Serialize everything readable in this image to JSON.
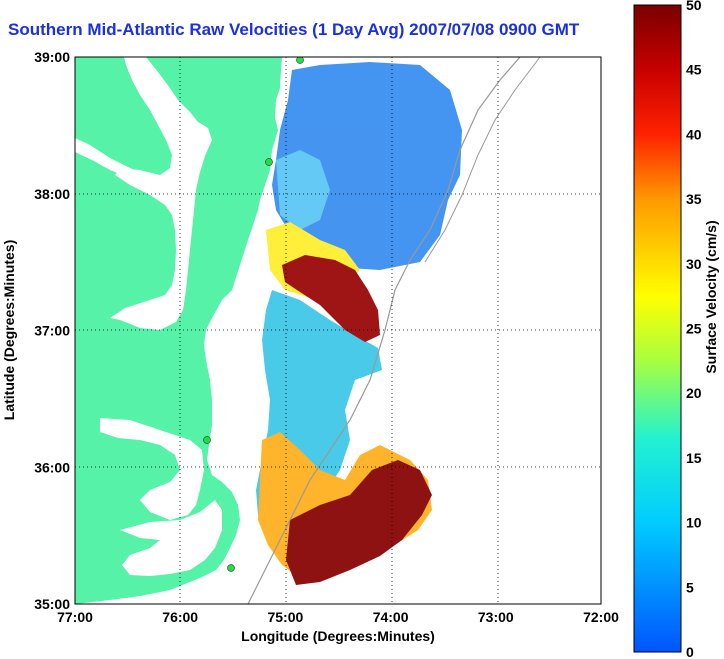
{
  "title": "Southern Mid-Atlantic Raw Velocities (1 Day Avg) 2007/07/08 0900 GMT",
  "x_axis": {
    "label": "Longitude (Degrees:Minutes)",
    "ticks": [
      "77:00",
      "76:00",
      "75:00",
      "74:00",
      "73:00",
      "72:00"
    ]
  },
  "y_axis": {
    "label": "Latitude (Degrees:Minutes)",
    "ticks": [
      "39:00",
      "38:00",
      "37:00",
      "36:00",
      "35:00"
    ]
  },
  "colorbar": {
    "label": "Surface Velocity (cm/s)",
    "ticks": [
      "50",
      "45",
      "40",
      "35",
      "30",
      "25",
      "20",
      "15",
      "10",
      "5",
      "0"
    ],
    "min": 0,
    "max": 50
  },
  "colors": {
    "land": "#55f2a8",
    "title": "#1a2fe6",
    "station": "#22dd44"
  }
}
